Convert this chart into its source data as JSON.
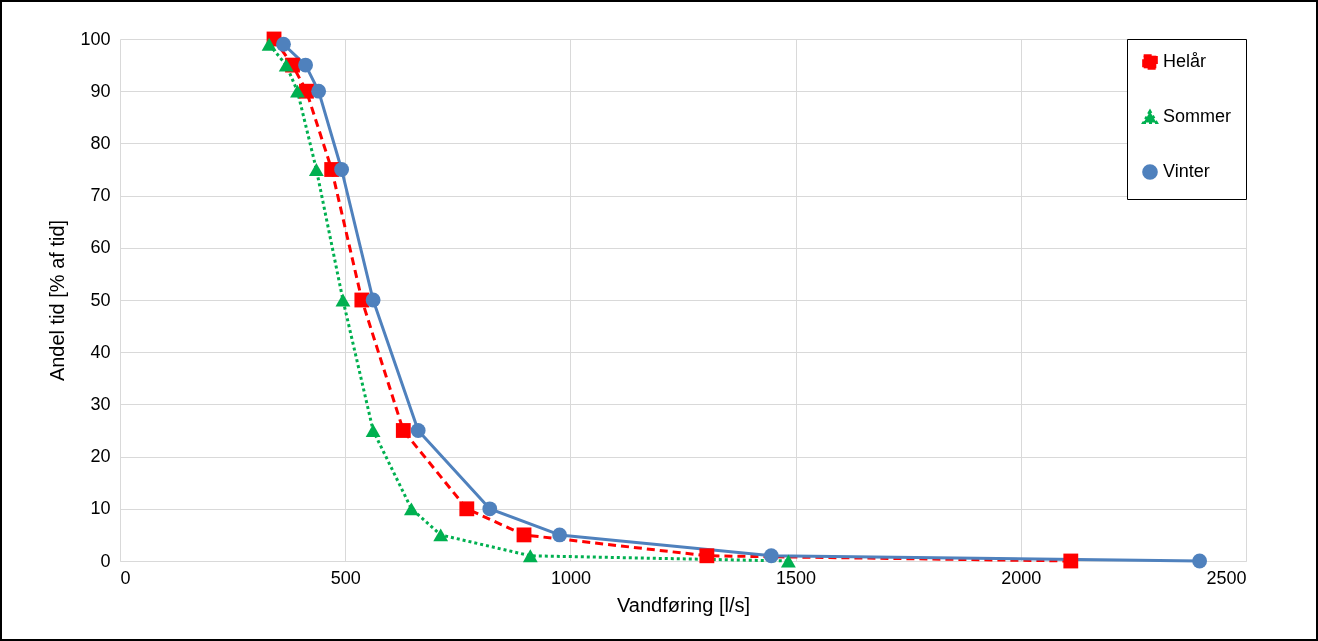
{
  "chart_data": {
    "type": "line",
    "xlabel": "Vandføring [l/s]",
    "ylabel": "Andel tid [% af tid]",
    "xlim": [
      0,
      2500
    ],
    "xticks": [
      0,
      500,
      1000,
      1500,
      2000,
      2500
    ],
    "ylim": [
      0,
      100
    ],
    "yticks": [
      0,
      10,
      20,
      30,
      40,
      50,
      60,
      70,
      80,
      90,
      100
    ],
    "grid": true,
    "legend": "top right",
    "series": [
      {
        "name": "Helår",
        "color": "#ff0000",
        "marker": "square",
        "line_style": "dashed",
        "x": [
          342,
          383,
          414,
          470,
          537,
          629,
          770,
          897,
          1303,
          2111
        ],
        "values": [
          100,
          95,
          90,
          75,
          50,
          25,
          10,
          5,
          1,
          0
        ]
      },
      {
        "name": "Sommer",
        "color": "#00b050",
        "marker": "triangle",
        "line_style": "dotted",
        "x": [
          331,
          369,
          394,
          436,
          495,
          562,
          647,
          712,
          911,
          1484
        ],
        "values": [
          99,
          95,
          90,
          75,
          50,
          25,
          10,
          5,
          1,
          0
        ]
      },
      {
        "name": "Vinter",
        "color": "#4f81bd",
        "marker": "circle",
        "line_style": "solid",
        "x": [
          363,
          412,
          441,
          492,
          562,
          662,
          821,
          976,
          1446,
          2397
        ],
        "values": [
          99,
          95,
          90,
          75,
          50,
          25,
          10,
          5,
          1,
          0
        ]
      }
    ]
  }
}
